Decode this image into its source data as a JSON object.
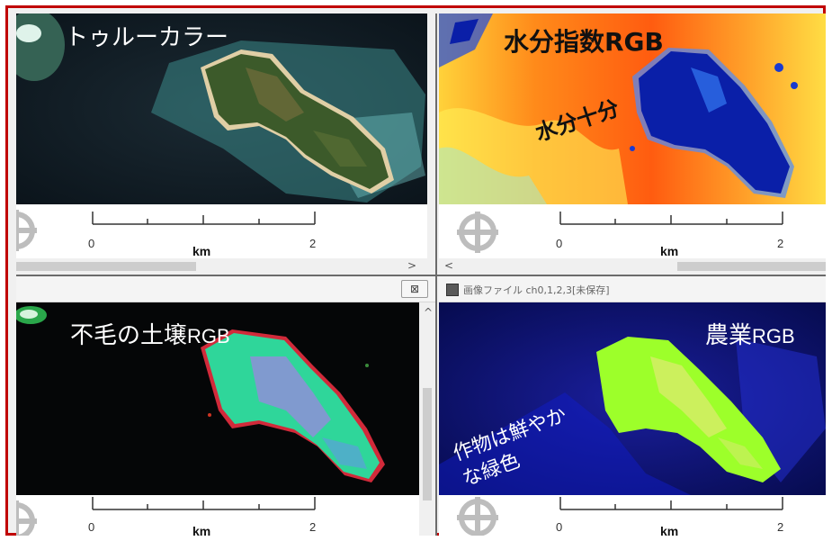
{
  "panels": {
    "true_color": {
      "label": "トゥルーカラー"
    },
    "moisture": {
      "label": "水分指数RGB",
      "annotation": "水分十分"
    },
    "bare_soil": {
      "label_jp": "不毛の土壌",
      "label_latin": "RGB"
    },
    "agriculture": {
      "label_jp": "農業",
      "label_latin": "RGB",
      "annotation_line1": "作物は鮮やか",
      "annotation_line2": "な緑色"
    }
  },
  "window": {
    "title": "画像ファイル ch0,1,2,3[未保存]",
    "close_icon": "⊠"
  },
  "scale_bar": {
    "tick_start": "0",
    "tick_end": "2",
    "unit": "km"
  },
  "icons": {
    "close": "close-icon",
    "navigation": "navigation-crosshair-icon",
    "scroll_up": "^",
    "scroll_down": "v",
    "scroll_left": "<",
    "scroll_right": ">"
  },
  "colors": {
    "frame_border": "#c00000",
    "moisture_high": "#0a1fa8",
    "moisture_low": "#ff8c00",
    "vegetation_green": "#9dff2a"
  }
}
